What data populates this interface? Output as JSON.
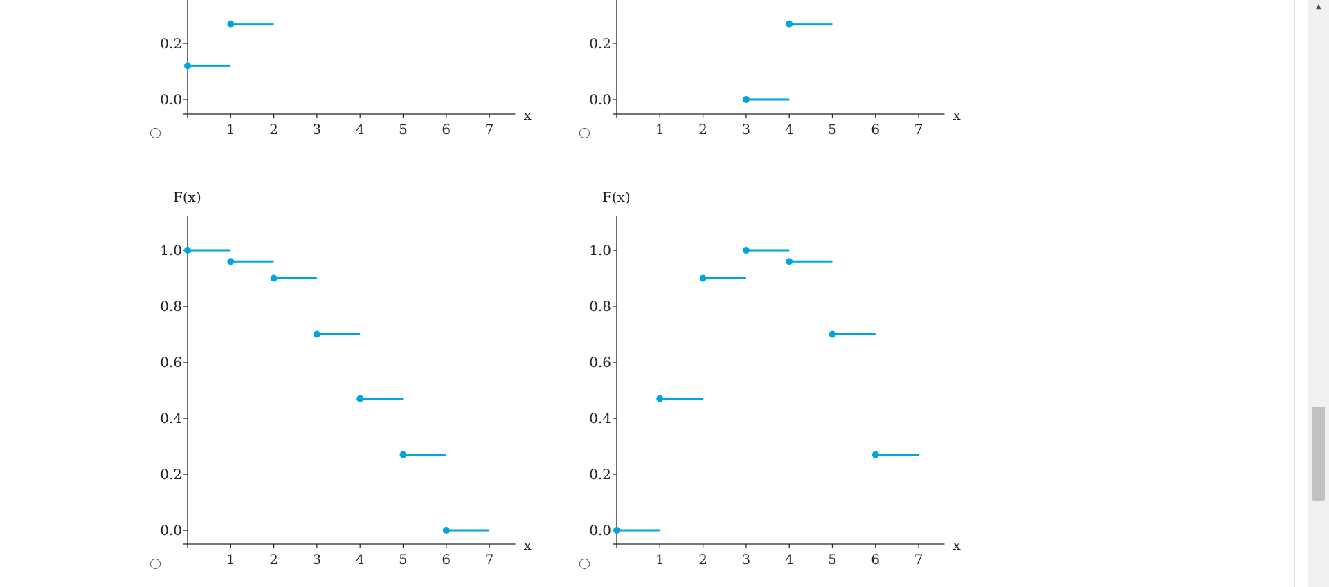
{
  "accent_color": "#00a5e0",
  "chart_data": [
    {
      "type": "step",
      "ylabel": "",
      "xlabel": "x",
      "x_ticks": [
        "1",
        "2",
        "3",
        "4",
        "5",
        "6",
        "7"
      ],
      "y_ticks": [
        "0.0",
        "0.2"
      ],
      "segments": [
        {
          "x0": 0,
          "x1": 1,
          "y": 0.12
        },
        {
          "x0": 1,
          "x1": 2,
          "y": 0.27
        }
      ]
    },
    {
      "type": "step",
      "ylabel": "",
      "xlabel": "x",
      "x_ticks": [
        "1",
        "2",
        "3",
        "4",
        "5",
        "6",
        "7"
      ],
      "y_ticks": [
        "0.0",
        "0.2"
      ],
      "segments": [
        {
          "x0": 3,
          "x1": 4,
          "y": 0.0
        },
        {
          "x0": 4,
          "x1": 5,
          "y": 0.27
        }
      ]
    },
    {
      "type": "step",
      "ylabel": "F(x)",
      "xlabel": "x",
      "x_ticks": [
        "1",
        "2",
        "3",
        "4",
        "5",
        "6",
        "7"
      ],
      "y_ticks": [
        "0.0",
        "0.2",
        "0.4",
        "0.6",
        "0.8",
        "1.0"
      ],
      "segments": [
        {
          "x0": 0,
          "x1": 1,
          "y": 1.0
        },
        {
          "x0": 1,
          "x1": 2,
          "y": 0.96
        },
        {
          "x0": 2,
          "x1": 3,
          "y": 0.9
        },
        {
          "x0": 3,
          "x1": 4,
          "y": 0.7
        },
        {
          "x0": 4,
          "x1": 5,
          "y": 0.47
        },
        {
          "x0": 5,
          "x1": 6,
          "y": 0.27
        },
        {
          "x0": 6,
          "x1": 7,
          "y": 0.0
        }
      ]
    },
    {
      "type": "step",
      "ylabel": "F(x)",
      "xlabel": "x",
      "x_ticks": [
        "1",
        "2",
        "3",
        "4",
        "5",
        "6",
        "7"
      ],
      "y_ticks": [
        "0.0",
        "0.2",
        "0.4",
        "0.6",
        "0.8",
        "1.0"
      ],
      "segments": [
        {
          "x0": 0,
          "x1": 1,
          "y": 0.0
        },
        {
          "x0": 1,
          "x1": 2,
          "y": 0.47
        },
        {
          "x0": 2,
          "x1": 3,
          "y": 0.9
        },
        {
          "x0": 3,
          "x1": 4,
          "y": 1.0
        },
        {
          "x0": 4,
          "x1": 5,
          "y": 0.96
        },
        {
          "x0": 5,
          "x1": 6,
          "y": 0.7
        },
        {
          "x0": 6,
          "x1": 7,
          "y": 0.27
        }
      ]
    }
  ],
  "options": [
    {
      "selected": false
    },
    {
      "selected": false
    },
    {
      "selected": false
    },
    {
      "selected": false
    }
  ]
}
